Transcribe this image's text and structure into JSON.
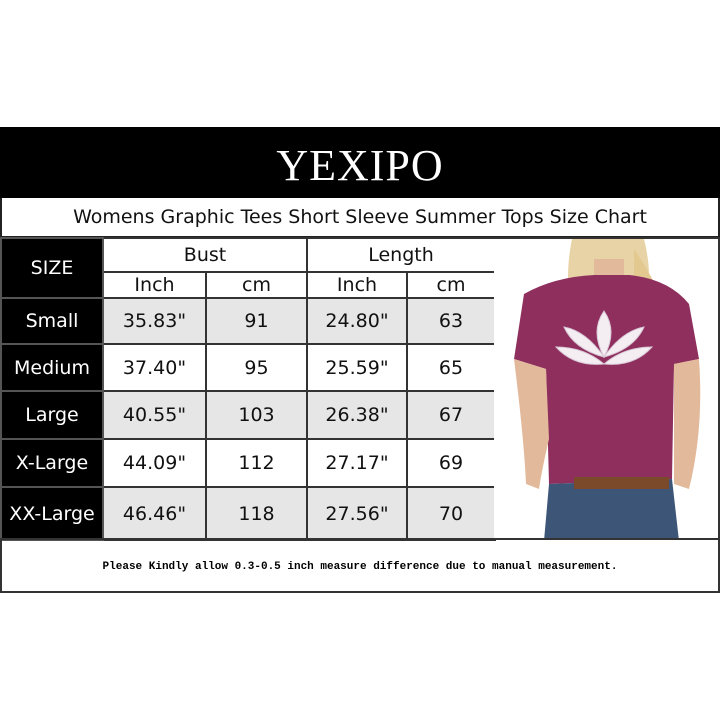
{
  "brand": "YEXIPO",
  "subtitle": "Womens Graphic Tees Short Sleeve Summer Tops Size Chart",
  "table": {
    "size_header": "SIZE",
    "groups": [
      "Bust",
      "Length"
    ],
    "units": [
      "Inch",
      "cm",
      "Inch",
      "cm"
    ],
    "rows": [
      {
        "size": "Small",
        "bust_in": "35.83\"",
        "bust_cm": "91",
        "len_in": "24.80\"",
        "len_cm": "63"
      },
      {
        "size": "Medium",
        "bust_in": "37.40\"",
        "bust_cm": "95",
        "len_in": "25.59\"",
        "len_cm": "65"
      },
      {
        "size": "Large",
        "bust_in": "40.55\"",
        "bust_cm": "103",
        "len_in": "26.38\"",
        "len_cm": "67"
      },
      {
        "size": "X-Large",
        "bust_in": "44.09\"",
        "bust_cm": "112",
        "len_in": "27.17\"",
        "len_cm": "69"
      },
      {
        "size": "XX-Large",
        "bust_in": "46.46\"",
        "bust_cm": "118",
        "len_in": "27.56\"",
        "len_cm": "70"
      }
    ]
  },
  "note": "Please Kindly allow 0.3-0.5 inch measure difference due to manual measurement.",
  "colors": {
    "shirt": "#8e2f5e",
    "row_shade": "#e6e6e6",
    "header": "#000000"
  }
}
